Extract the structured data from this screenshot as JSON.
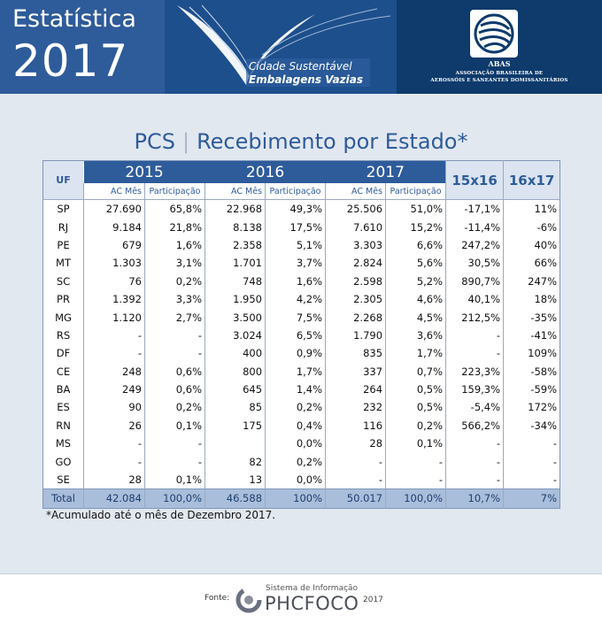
{
  "header": {
    "title_line1": "Estatística",
    "title_line2": "2017",
    "program_line1": "Cidade Sustentável",
    "program_line2": "Embalagens Vazias",
    "org_acronym": "ABAS",
    "org_line1": "ASSOCIAÇÃO BRASILEIRA DE",
    "org_line2": "AEROSSÓIS E SANEANTES DOMISSANITÁRIOS"
  },
  "page_title": {
    "product": "PCS",
    "separator": "|",
    "subtitle": "Recebimento por Estado*"
  },
  "table": {
    "uf_header": "UF",
    "years": [
      "2015",
      "2016",
      "2017"
    ],
    "sub_headers": {
      "ac": "AC Mês",
      "part": "Participação"
    },
    "comparisons": [
      "15x16",
      "16x17"
    ],
    "rows": [
      {
        "uf": "SP",
        "v2015": "27.690",
        "p2015": "65,8%",
        "v2016": "22.968",
        "p2016": "49,3%",
        "v2017": "25.506",
        "p2017": "51,0%",
        "c1516": "-17,1%",
        "c1617": "11%"
      },
      {
        "uf": "RJ",
        "v2015": "9.184",
        "p2015": "21,8%",
        "v2016": "8.138",
        "p2016": "17,5%",
        "v2017": "7.610",
        "p2017": "15,2%",
        "c1516": "-11,4%",
        "c1617": "-6%"
      },
      {
        "uf": "PE",
        "v2015": "679",
        "p2015": "1,6%",
        "v2016": "2.358",
        "p2016": "5,1%",
        "v2017": "3.303",
        "p2017": "6,6%",
        "c1516": "247,2%",
        "c1617": "40%"
      },
      {
        "uf": "MT",
        "v2015": "1.303",
        "p2015": "3,1%",
        "v2016": "1.701",
        "p2016": "3,7%",
        "v2017": "2.824",
        "p2017": "5,6%",
        "c1516": "30,5%",
        "c1617": "66%"
      },
      {
        "uf": "SC",
        "v2015": "76",
        "p2015": "0,2%",
        "v2016": "748",
        "p2016": "1,6%",
        "v2017": "2.598",
        "p2017": "5,2%",
        "c1516": "890,7%",
        "c1617": "247%"
      },
      {
        "uf": "PR",
        "v2015": "1.392",
        "p2015": "3,3%",
        "v2016": "1.950",
        "p2016": "4,2%",
        "v2017": "2.305",
        "p2017": "4,6%",
        "c1516": "40,1%",
        "c1617": "18%"
      },
      {
        "uf": "MG",
        "v2015": "1.120",
        "p2015": "2,7%",
        "v2016": "3.500",
        "p2016": "7,5%",
        "v2017": "2.268",
        "p2017": "4,5%",
        "c1516": "212,5%",
        "c1617": "-35%"
      },
      {
        "uf": "RS",
        "v2015": "-",
        "p2015": "-",
        "v2016": "3.024",
        "p2016": "6,5%",
        "v2017": "1.790",
        "p2017": "3,6%",
        "c1516": "-",
        "c1617": "-41%"
      },
      {
        "uf": "DF",
        "v2015": "-",
        "p2015": "-",
        "v2016": "400",
        "p2016": "0,9%",
        "v2017": "835",
        "p2017": "1,7%",
        "c1516": "-",
        "c1617": "109%"
      },
      {
        "uf": "CE",
        "v2015": "248",
        "p2015": "0,6%",
        "v2016": "800",
        "p2016": "1,7%",
        "v2017": "337",
        "p2017": "0,7%",
        "c1516": "223,3%",
        "c1617": "-58%"
      },
      {
        "uf": "BA",
        "v2015": "249",
        "p2015": "0,6%",
        "v2016": "645",
        "p2016": "1,4%",
        "v2017": "264",
        "p2017": "0,5%",
        "c1516": "159,3%",
        "c1617": "-59%"
      },
      {
        "uf": "ES",
        "v2015": "90",
        "p2015": "0,2%",
        "v2016": "85",
        "p2016": "0,2%",
        "v2017": "232",
        "p2017": "0,5%",
        "c1516": "-5,4%",
        "c1617": "172%"
      },
      {
        "uf": "RN",
        "v2015": "26",
        "p2015": "0,1%",
        "v2016": "175",
        "p2016": "0,4%",
        "v2017": "116",
        "p2017": "0,2%",
        "c1516": "566,2%",
        "c1617": "-34%"
      },
      {
        "uf": "MS",
        "v2015": "-",
        "p2015": "-",
        "v2016": "",
        "p2016": "0,0%",
        "v2017": "28",
        "p2017": "0,1%",
        "c1516": "-",
        "c1617": "-"
      },
      {
        "uf": "GO",
        "v2015": "-",
        "p2015": "-",
        "v2016": "82",
        "p2016": "0,2%",
        "v2017": "-",
        "p2017": "-",
        "c1516": "-",
        "c1617": "-"
      },
      {
        "uf": "SE",
        "v2015": "28",
        "p2015": "0,1%",
        "v2016": "13",
        "p2016": "0,0%",
        "v2017": "-",
        "p2017": "-",
        "c1516": "-",
        "c1617": "-"
      }
    ],
    "total": {
      "uf": "Total",
      "v2015": "42.084",
      "p2015": "100,0%",
      "v2016": "46.588",
      "p2016": "100%",
      "v2017": "50.017",
      "p2017": "100,0%",
      "c1516": "10,7%",
      "c1617": "7%"
    }
  },
  "footnote": "*Acumulado até o mês de Dezembro 2017.",
  "footer": {
    "fonte_label": "Fonte:",
    "system_label": "Sistema de Informação",
    "system_name": "PHCFOCO",
    "system_year": "2017"
  },
  "colors": {
    "primary_blue": "#2e5b9a",
    "dark_blue": "#0e3a6c",
    "panel_bg": "#e2e8f0",
    "total_row_bg": "#a9bedb"
  }
}
